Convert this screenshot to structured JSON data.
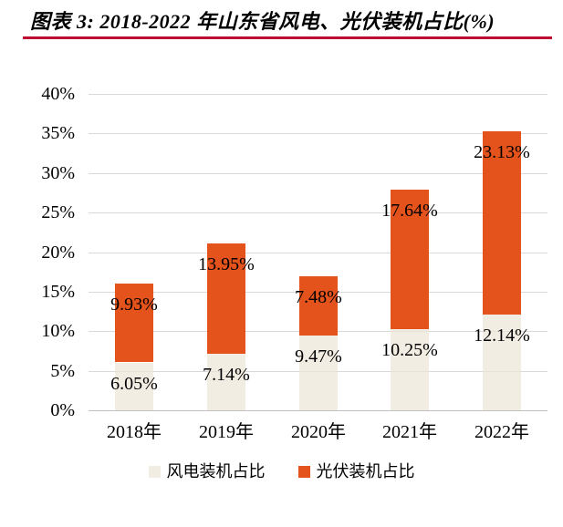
{
  "figure": {
    "title": "图表 3: 2018-2022 年山东省风电、光伏装机占比(%)"
  },
  "colors": {
    "title_rule": "#BE0B33",
    "wind_fill_base": "#ECE5D7",
    "wind_fill_apparent": "#F2EDE3",
    "solar_fill": "#E4531B",
    "gridline": "#D9D9D9",
    "axis_baseline": "#C0C0C0",
    "text": "#000000",
    "background": "#FFFFFF"
  },
  "chart_data": {
    "type": "bar",
    "stacked": true,
    "title": "图表 3: 2018-2022 年山东省风电、光伏装机占比(%)",
    "xlabel": "",
    "ylabel": "",
    "categories": [
      "2018年",
      "2019年",
      "2020年",
      "2021年",
      "2022年"
    ],
    "series": [
      {
        "name": "风电装机占比",
        "color": "#ECE5D7",
        "opacity": 0.7,
        "values": [
          6.05,
          7.14,
          9.47,
          10.25,
          12.14
        ],
        "labels": [
          "6.05%",
          "7.14%",
          "9.47%",
          "10.25%",
          "12.14%"
        ]
      },
      {
        "name": "光伏装机占比",
        "color": "#E4531B",
        "opacity": 1,
        "values": [
          9.93,
          13.95,
          7.48,
          17.64,
          23.13
        ],
        "labels": [
          "9.93%",
          "13.95%",
          "7.48%",
          "17.64%",
          "23.13%"
        ]
      }
    ],
    "totals": [
      15.98,
      21.09,
      16.95,
      27.89,
      35.27
    ],
    "ylim": [
      0,
      40
    ],
    "ytick_step": 5,
    "ytick_labels": [
      "0%",
      "5%",
      "10%",
      "15%",
      "20%",
      "25%",
      "30%",
      "35%",
      "40%"
    ],
    "grid": "horizontal",
    "data_labels": "inside-end",
    "legend_position": "bottom",
    "legend": [
      "风电装机占比",
      "光伏装机占比"
    ]
  }
}
